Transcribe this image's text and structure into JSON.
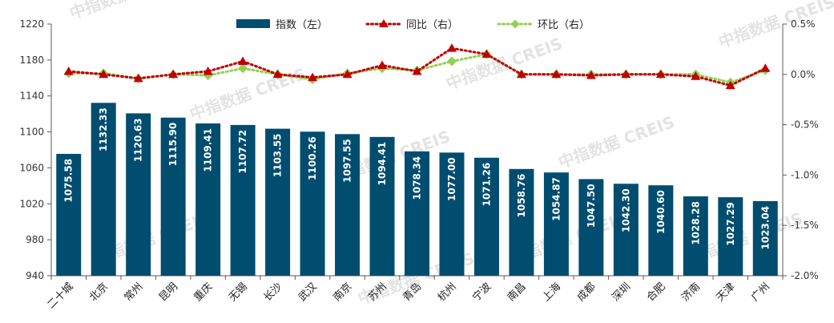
{
  "chart_data": {
    "type": "bar",
    "categories": [
      "二十城",
      "北京",
      "常州",
      "昆明",
      "重庆",
      "无锡",
      "长沙",
      "武汉",
      "南京",
      "苏州",
      "青岛",
      "杭州",
      "宁波",
      "南昌",
      "上海",
      "成都",
      "深圳",
      "合肥",
      "济南",
      "天津",
      "广州"
    ],
    "series": [
      {
        "name": "指数（左）",
        "type": "bar",
        "axis": "left",
        "values": [
          1075.58,
          1132.33,
          1120.63,
          1115.9,
          1109.41,
          1107.72,
          1103.55,
          1100.26,
          1097.55,
          1094.41,
          1078.34,
          1077.0,
          1071.26,
          1058.76,
          1054.87,
          1047.5,
          1042.3,
          1040.6,
          1028.28,
          1027.29,
          1023.04
        ],
        "labels": [
          "1075.58",
          "1132.33",
          "1120.63",
          "1115.90",
          "1109.41",
          "1107.72",
          "1103.55",
          "1100.26",
          "1097.55",
          "1094.41",
          "1078.34",
          "1077.00",
          "1071.26",
          "1058.76",
          "1054.87",
          "1047.50",
          "1042.30",
          "1040.60",
          "1028.28",
          "1027.29",
          "1023.04"
        ]
      },
      {
        "name": "同比（右）",
        "type": "line",
        "axis": "right",
        "values": [
          0.03,
          0.0,
          -0.04,
          0.0,
          0.03,
          0.13,
          0.0,
          -0.03,
          0.0,
          0.09,
          0.03,
          0.26,
          0.2,
          0.0,
          0.0,
          -0.01,
          0.0,
          0.0,
          -0.02,
          -0.11,
          0.06
        ]
      },
      {
        "name": "环比（右）",
        "type": "line",
        "axis": "right",
        "values": [
          0.01,
          0.01,
          -0.04,
          0.0,
          -0.01,
          0.06,
          0.0,
          -0.05,
          0.01,
          0.06,
          0.04,
          0.13,
          0.2,
          0.0,
          0.0,
          0.0,
          0.0,
          0.0,
          0.0,
          -0.08,
          0.04
        ]
      }
    ],
    "left_axis": {
      "min": 940,
      "max": 1220,
      "ticks": [
        "940",
        "980",
        "1020",
        "1060",
        "1100",
        "1140",
        "1180",
        "1220"
      ]
    },
    "right_axis": {
      "min": -2.0,
      "max": 0.5,
      "ticks": [
        "-2.0%",
        "-1.5%",
        "-1.0%",
        "-0.5%",
        "0.0%",
        "0.5%"
      ]
    },
    "colors": {
      "bar": "#004d70",
      "yoy": "#c00000",
      "mom": "#92d050"
    },
    "legend_position": "top-center",
    "grid": false
  },
  "watermark": "中指数据 CREIS"
}
